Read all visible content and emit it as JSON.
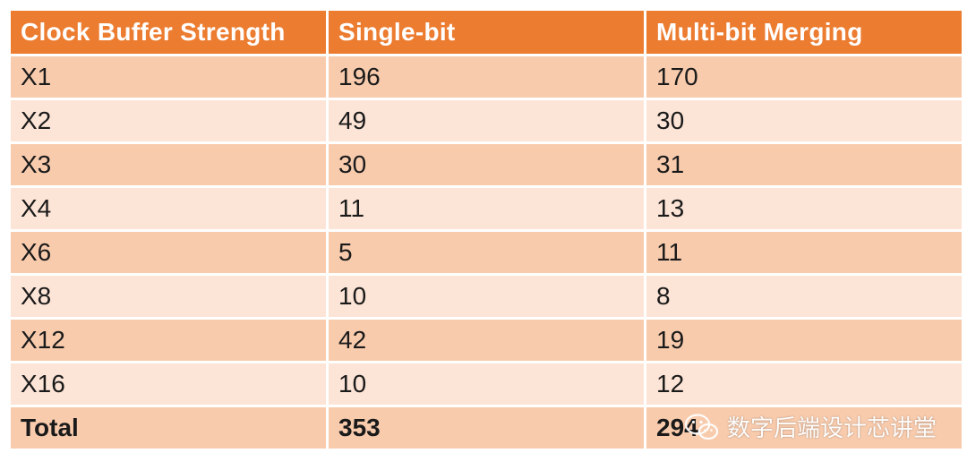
{
  "table": {
    "headers": [
      "Clock Buffer Strength",
      "Single-bit",
      "Multi-bit Merging"
    ],
    "rows": [
      [
        "X1",
        "196",
        "170"
      ],
      [
        "X2",
        "49",
        "30"
      ],
      [
        "X3",
        "30",
        "31"
      ],
      [
        "X4",
        "11",
        "13"
      ],
      [
        "X6",
        "5",
        "11"
      ],
      [
        "X8",
        "10",
        "8"
      ],
      [
        "X12",
        "42",
        "19"
      ],
      [
        "X16",
        "10",
        "12"
      ]
    ],
    "total": [
      "Total",
      "353",
      "294"
    ]
  },
  "watermark": {
    "text": "数字后端设计芯讲堂",
    "icon": "wechat-icon"
  },
  "colors": {
    "header_bg": "#ec7c30",
    "row_dark": "#f8cbad",
    "row_light": "#fce4d6"
  }
}
